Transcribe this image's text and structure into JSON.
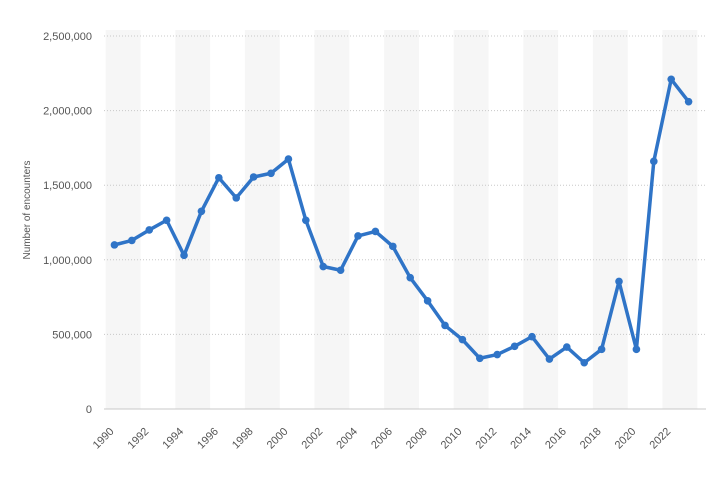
{
  "chart_data": {
    "type": "line",
    "title": "",
    "xlabel": "",
    "ylabel": "Number of encounters",
    "ylim": [
      0,
      2500000
    ],
    "yticks": [
      0,
      500000,
      1000000,
      1500000,
      2000000,
      2500000
    ],
    "ytick_labels": [
      "0",
      "500,000",
      "1,000,000",
      "1,500,000",
      "2,000,000",
      "2,500,000"
    ],
    "xticks": [
      1990,
      1992,
      1994,
      1996,
      1998,
      2000,
      2002,
      2004,
      2006,
      2008,
      2010,
      2012,
      2014,
      2016,
      2018,
      2020,
      2022
    ],
    "xtick_labels": [
      "1990",
      "1992",
      "1994",
      "1996",
      "1998",
      "2000",
      "2002",
      "2004",
      "2006",
      "2008",
      "2010",
      "2012",
      "2014",
      "2016",
      "2018",
      "2020",
      "2022"
    ],
    "grid": "horizontal dotted",
    "legend": "none",
    "colors": {
      "line": "#2f74c7",
      "grid": "#c8c8c8",
      "band": "#f6f6f6"
    },
    "series": [
      {
        "x": [
          1990,
          1991,
          1992,
          1993,
          1994,
          1995,
          1996,
          1997,
          1998,
          1999,
          2000,
          2001,
          2002,
          2003,
          2004,
          2005,
          2006,
          2007,
          2008,
          2009,
          2010,
          2011,
          2012,
          2013,
          2014,
          2015,
          2016,
          2017,
          2018,
          2019,
          2020,
          2021,
          2022,
          2023
        ],
        "values": [
          1100000,
          1130000,
          1200000,
          1265000,
          1030000,
          1325000,
          1550000,
          1415000,
          1555000,
          1580000,
          1675000,
          1265000,
          955000,
          930000,
          1160000,
          1190000,
          1090000,
          880000,
          725000,
          560000,
          465000,
          340000,
          365000,
          420000,
          485000,
          335000,
          415000,
          310000,
          400000,
          855000,
          400000,
          1660000,
          2210000,
          2060000
        ]
      }
    ]
  }
}
